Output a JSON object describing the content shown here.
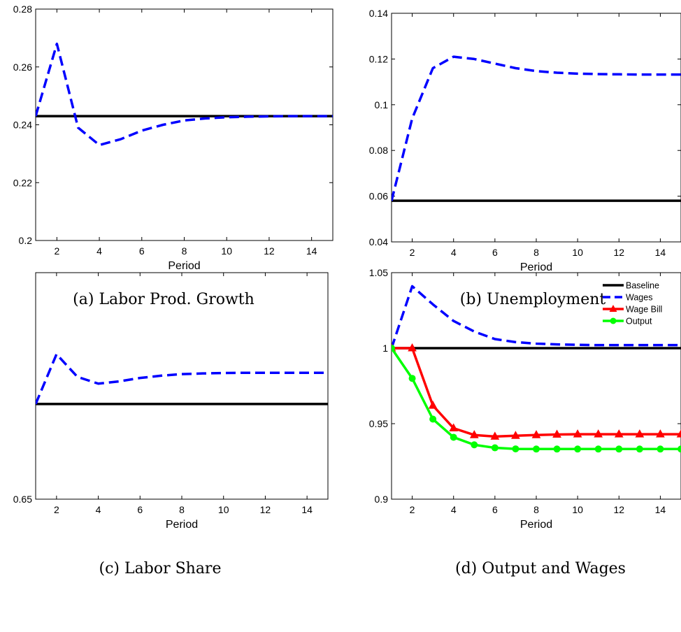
{
  "chart_data": [
    {
      "type": "line",
      "caption": "(a) Labor Prod. Growth",
      "xlabel": "Period",
      "ylabel": "",
      "xlim": [
        1,
        15
      ],
      "ylim": [
        0.2,
        0.28
      ],
      "xticks": [
        2,
        4,
        6,
        8,
        10,
        12,
        14
      ],
      "yticks": [
        0.2,
        0.22,
        0.24,
        0.26,
        0.28
      ],
      "ytick_labels": [
        "0.2",
        "0.22",
        "0.24",
        "0.26",
        "0.28"
      ],
      "series": [
        {
          "x": [
            1,
            15
          ],
          "values": [
            0.243,
            0.243
          ],
          "color": "#000000",
          "style": "solid"
        },
        {
          "x": [
            1,
            2,
            3,
            4,
            5,
            6,
            7,
            8,
            9,
            10,
            11,
            12,
            13,
            14,
            15
          ],
          "values": [
            0.243,
            0.268,
            0.239,
            0.233,
            0.235,
            0.238,
            0.24,
            0.2415,
            0.2422,
            0.2426,
            0.2428,
            0.2429,
            0.243,
            0.243,
            0.243
          ],
          "color": "#0000ff",
          "style": "dashed"
        }
      ]
    },
    {
      "type": "line",
      "caption": "(b) Unemployment",
      "xlabel": "Period",
      "ylabel": "",
      "xlim": [
        1,
        15
      ],
      "ylim": [
        0.04,
        0.14
      ],
      "xticks": [
        2,
        4,
        6,
        8,
        10,
        12,
        14
      ],
      "yticks": [
        0.04,
        0.06,
        0.08,
        0.1,
        0.12,
        0.14
      ],
      "ytick_labels": [
        "0.04",
        "0.06",
        "0.08",
        "0.1",
        "0.12",
        "0.14"
      ],
      "series": [
        {
          "x": [
            1,
            15
          ],
          "values": [
            0.058,
            0.058
          ],
          "color": "#000000",
          "style": "solid"
        },
        {
          "x": [
            1,
            2,
            3,
            4,
            5,
            6,
            7,
            8,
            9,
            10,
            11,
            12,
            13,
            14,
            15
          ],
          "values": [
            0.058,
            0.094,
            0.116,
            0.121,
            0.12,
            0.118,
            0.116,
            0.1147,
            0.114,
            0.1136,
            0.1134,
            0.1133,
            0.1132,
            0.1132,
            0.1132
          ],
          "color": "#0000ff",
          "style": "dashed"
        }
      ]
    },
    {
      "type": "line",
      "caption": "(c) Labor Share",
      "xlabel": "Period",
      "ylabel": "",
      "xlim": [
        1,
        15
      ],
      "ylim": [
        0.65,
        0.75
      ],
      "xticks": [
        2,
        4,
        6,
        8,
        10,
        12,
        14
      ],
      "yticks": [
        0.65
      ],
      "ytick_labels": [
        "0.65"
      ],
      "series": [
        {
          "x": [
            1,
            15
          ],
          "values": [
            0.692,
            0.692
          ],
          "color": "#000000",
          "style": "solid"
        },
        {
          "x": [
            1,
            2,
            3,
            4,
            5,
            6,
            7,
            8,
            9,
            10,
            11,
            12,
            13,
            14,
            15
          ],
          "values": [
            0.692,
            0.714,
            0.704,
            0.701,
            0.702,
            0.7035,
            0.7045,
            0.7052,
            0.7055,
            0.7057,
            0.7058,
            0.7058,
            0.7058,
            0.7058,
            0.7058
          ],
          "color": "#0000ff",
          "style": "dashed"
        }
      ]
    },
    {
      "type": "line",
      "caption": "(d) Output and Wages",
      "xlabel": "Period",
      "ylabel": "",
      "xlim": [
        1,
        15
      ],
      "ylim": [
        0.9,
        1.05
      ],
      "xticks": [
        2,
        4,
        6,
        8,
        10,
        12,
        14
      ],
      "yticks": [
        0.9,
        0.95,
        1,
        1.05
      ],
      "ytick_labels": [
        "0.9",
        "0.95",
        "1",
        "1.05"
      ],
      "legend_position": "top-right",
      "series": [
        {
          "name": "Baseline",
          "x": [
            1,
            15
          ],
          "values": [
            1.0,
            1.0
          ],
          "color": "#000000",
          "style": "solid"
        },
        {
          "name": "Wages",
          "x": [
            1,
            2,
            3,
            4,
            5,
            6,
            7,
            8,
            9,
            10,
            11,
            12,
            13,
            14,
            15
          ],
          "values": [
            1.0,
            1.041,
            1.029,
            1.018,
            1.011,
            1.006,
            1.004,
            1.003,
            1.0025,
            1.0022,
            1.002,
            1.002,
            1.002,
            1.002,
            1.002
          ],
          "color": "#0000ff",
          "style": "dashed"
        },
        {
          "name": "Wage Bill",
          "x": [
            1,
            2,
            3,
            4,
            5,
            6,
            7,
            8,
            9,
            10,
            11,
            12,
            13,
            14,
            15
          ],
          "values": [
            1.0,
            1.0,
            0.962,
            0.947,
            0.9425,
            0.9415,
            0.942,
            0.9425,
            0.9428,
            0.943,
            0.943,
            0.943,
            0.943,
            0.943,
            0.943
          ],
          "color": "#ff0000",
          "style": "solid",
          "marker": "triangle"
        },
        {
          "name": "Output",
          "x": [
            1,
            2,
            3,
            4,
            5,
            6,
            7,
            8,
            9,
            10,
            11,
            12,
            13,
            14,
            15
          ],
          "values": [
            1.0,
            0.98,
            0.953,
            0.941,
            0.936,
            0.934,
            0.9333,
            0.9332,
            0.9332,
            0.9332,
            0.9332,
            0.9332,
            0.9332,
            0.9332,
            0.9332
          ],
          "color": "#00ff00",
          "style": "solid",
          "marker": "circle"
        }
      ]
    }
  ]
}
